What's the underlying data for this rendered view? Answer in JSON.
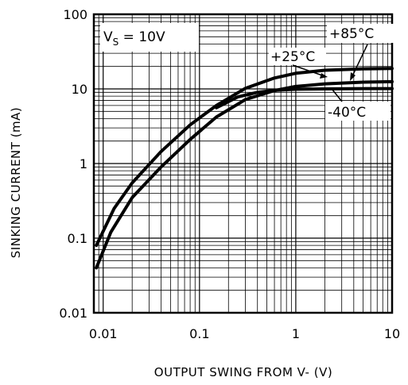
{
  "chart_data": {
    "type": "line",
    "x_scale": "log",
    "y_scale": "log",
    "xlim": [
      0.008,
      10
    ],
    "ylim": [
      0.01,
      100
    ],
    "grid": true,
    "xlabel": "OUTPUT SWING FROM V- (V)",
    "ylabel": "SINKING CURRENT (mA)",
    "x_ticks": [
      {
        "value": 0.01,
        "label": "0.01"
      },
      {
        "value": 0.1,
        "label": "0.1"
      },
      {
        "value": 1,
        "label": "1"
      },
      {
        "value": 10,
        "label": "10"
      }
    ],
    "y_ticks": [
      {
        "value": 0.01,
        "label": "0.01"
      },
      {
        "value": 0.1,
        "label": "0.1"
      },
      {
        "value": 1,
        "label": "1"
      },
      {
        "value": 10,
        "label": "10"
      },
      {
        "value": 100,
        "label": "100"
      }
    ],
    "annotation_vs": {
      "main": "V",
      "sub": "S",
      "rest": " = 10V"
    },
    "series": [
      {
        "name": "+85°C",
        "x": [
          0.0085,
          0.012,
          0.02,
          0.04,
          0.08,
          0.15,
          0.3,
          0.6,
          1,
          2,
          5,
          10
        ],
        "y": [
          0.04,
          0.12,
          0.35,
          0.9,
          2.1,
          4.2,
          7.2,
          9.5,
          10.8,
          11.7,
          12.3,
          12.5
        ]
      },
      {
        "name": "+25°C",
        "x": [
          0.0085,
          0.013,
          0.02,
          0.04,
          0.08,
          0.15,
          0.3,
          0.6,
          1,
          2,
          5,
          10
        ],
        "y": [
          0.08,
          0.25,
          0.55,
          1.45,
          3.3,
          6.0,
          10.2,
          14.0,
          16.2,
          17.8,
          18.6,
          18.8
        ]
      },
      {
        "name": "-40°C",
        "x": [
          0.15,
          0.25,
          0.4,
          0.6,
          1,
          2,
          5,
          10
        ],
        "y": [
          5.6,
          7.8,
          9.0,
          9.6,
          9.9,
          10.0,
          10.1,
          10.1
        ]
      }
    ]
  }
}
